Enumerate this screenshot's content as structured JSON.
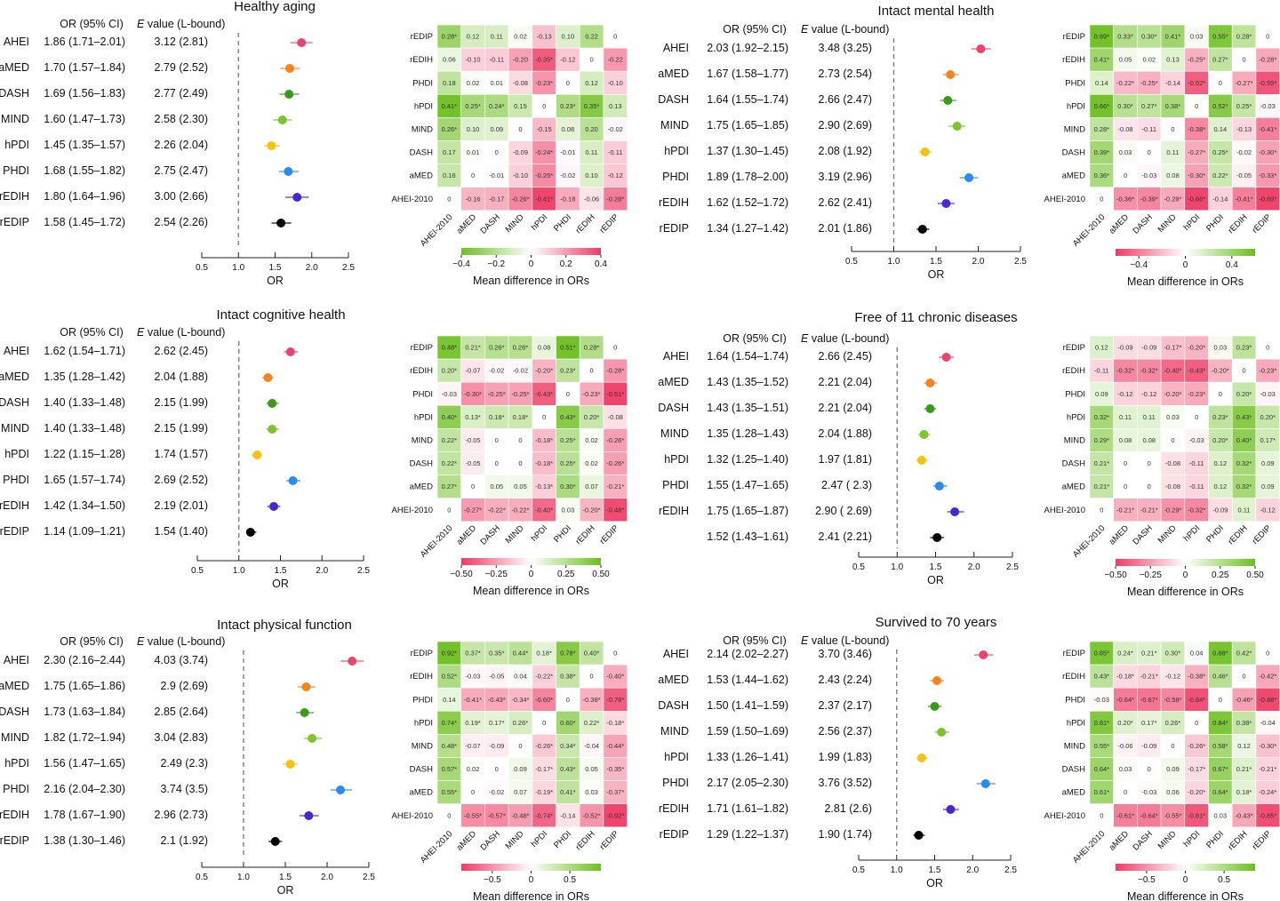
{
  "figure": {
    "or_header": "OR (95% CI)",
    "e_header_italic": "E",
    "e_header_rest": " value (L-bound)",
    "forest_axis_label": "OR",
    "forest_ticks": [
      "0.5",
      "1.0",
      "1.5",
      "2.0",
      "2.5"
    ],
    "heatmap_axis_labels": [
      "AHEI-2010",
      "aMED",
      "DASH",
      "MIND",
      "hPDI",
      "PHDI",
      "rEDIH",
      "rEDIP"
    ],
    "heatmap_row_labels": [
      "rEDIP",
      "rEDIH",
      "PHDI",
      "hPDI",
      "MIND",
      "DASH",
      "aMED",
      "AHEI-2010"
    ],
    "colorbar_label": "Mean difference in ORs",
    "colors": {
      "AHEI": "#f0436b",
      "aMED": "#f5841f",
      "DASH": "#3a9a1a",
      "MIND": "#7cc52c",
      "hPDI": "#f7c20e",
      "PHDI": "#2b8cf0",
      "rEDIH": "#4b24d6",
      "rEDIP": "#000000",
      "positive": "#6cbf1e",
      "negative": "#f03a64"
    }
  },
  "chart_data": [
    {
      "type": "forest+heatmap",
      "title": "Healthy aging",
      "xlim": [
        0.5,
        2.5
      ],
      "reference_line": 1.0,
      "rows": [
        {
          "label": "AHEI",
          "or": "1.86 (1.71–2.01)",
          "e": "3.12 (2.81)",
          "color": "AHEI"
        },
        {
          "label": "aMED",
          "or": "1.70 (1.57–1.84)",
          "e": "2.79 (2.52)",
          "color": "aMED"
        },
        {
          "label": "DASH",
          "or": "1.69 (1.56–1.83)",
          "e": "2.77 (2.49)",
          "color": "DASH"
        },
        {
          "label": "MIND",
          "or": "1.60 (1.47–1.73)",
          "e": "2.58 (2.30)",
          "color": "MIND"
        },
        {
          "label": "hPDI",
          "or": "1.45 (1.35–1.57)",
          "e": "2.26 (2.04)",
          "color": "hPDI"
        },
        {
          "label": "PHDI",
          "or": "1.68 (1.55–1.82)",
          "e": "2.75 (2.47)",
          "color": "PHDI"
        },
        {
          "label": "rEDIH",
          "or": "1.80 (1.64–1.96)",
          "e": "3.00 (2.66)",
          "color": "rEDIH"
        },
        {
          "label": "rEDIP",
          "or": "1.58 (1.45–1.72)",
          "e": "2.54 (2.26)",
          "color": "rEDIP"
        }
      ],
      "heatmap": [
        [
          "0.28*",
          "0.12",
          "0.11",
          "0.02",
          "-0.13",
          "0.10",
          "0.22",
          "0"
        ],
        [
          "0.06",
          "-0.10",
          "-0.11",
          "-0.20",
          "-0.35*",
          "-0.12",
          "0",
          "-0.22"
        ],
        [
          "0.18",
          "0.02",
          "0.01",
          "-0.08",
          "-0.23*",
          "0",
          "0.12",
          "-0.10"
        ],
        [
          "0.41*",
          "0.25*",
          "0.24*",
          "0.15",
          "0",
          "0.23*",
          "0.35*",
          "0.13"
        ],
        [
          "0.26*",
          "0.10",
          "0.09",
          "0",
          "-0.15",
          "0.08",
          "0.20",
          "-0.02"
        ],
        [
          "0.17",
          "0.01",
          "0",
          "-0.09",
          "-0.24*",
          "-0.01",
          "0.11",
          "-0.11"
        ],
        [
          "0.16",
          "0",
          "-0.01",
          "-0.10",
          "-0.25*",
          "-0.02",
          "0.10",
          "-0.12"
        ],
        [
          "0",
          "-0.16",
          "-0.17",
          "-0.26*",
          "-0.41*",
          "-0.18",
          "-0.06",
          "-0.28*"
        ]
      ],
      "colorbar": {
        "range": [
          -0.4,
          0.4
        ],
        "ticks": [
          "−0.4",
          "−0.2",
          "0",
          "0.2",
          "0.4"
        ],
        "left_color": "positive",
        "right_color": "negative"
      }
    },
    {
      "type": "forest+heatmap",
      "title": "Intact mental health",
      "xlim": [
        0.5,
        2.5
      ],
      "reference_line": 1.0,
      "rows": [
        {
          "label": "AHEI",
          "or": "2.03 (1.92–2.15)",
          "e": "3.48 (3.25)",
          "color": "AHEI"
        },
        {
          "label": "aMED",
          "or": "1.67 (1.58–1.77)",
          "e": "2.73 (2.54)",
          "color": "aMED"
        },
        {
          "label": "DASH",
          "or": "1.64 (1.55–1.74)",
          "e": "2.66 (2.47)",
          "color": "DASH"
        },
        {
          "label": "MIND",
          "or": "1.75 (1.65–1.85)",
          "e": "2.90 (2.69)",
          "color": "MIND"
        },
        {
          "label": "hPDI",
          "or": "1.37 (1.30–1.45)",
          "e": "2.08 (1.92)",
          "color": "hPDI"
        },
        {
          "label": "PHDI",
          "or": "1.89 (1.78–2.00)",
          "e": "3.19 (2.96)",
          "color": "PHDI"
        },
        {
          "label": "rEDIH",
          "or": "1.62 (1.52–1.72)",
          "e": "2.62 (2.41)",
          "color": "rEDIH"
        },
        {
          "label": "rEDIP",
          "or": "1.34 (1.27–1.42)",
          "e": "2.01 (1.86)",
          "color": "rEDIP"
        }
      ],
      "heatmap": [
        [
          "0.69*",
          "0.33*",
          "0.30*",
          "0.41*",
          "0.03",
          "0.55*",
          "0.28*",
          "0"
        ],
        [
          "0.41*",
          "0.05",
          "0.02",
          "0.13",
          "-0.25*",
          "0.27*",
          "0",
          "-0.28*"
        ],
        [
          "0.14",
          "-0.22*",
          "-0.25*",
          "-0.14",
          "-0.52*",
          "0",
          "-0.27*",
          "-0.55*"
        ],
        [
          "0.66*",
          "0.30*",
          "0.27*",
          "0.38*",
          "0",
          "0.52*",
          "0.25*",
          "-0.03"
        ],
        [
          "0.28*",
          "-0.08",
          "-0.11",
          "0",
          "-0.38*",
          "0.14",
          "-0.13",
          "-0.41*"
        ],
        [
          "0.39*",
          "0.03",
          "0",
          "0.11",
          "-0.27*",
          "0.25*",
          "-0.02",
          "-0.30*"
        ],
        [
          "0.36*",
          "0",
          "-0.03",
          "0.08",
          "-0.30*",
          "0.22*",
          "-0.05",
          "-0.33*"
        ],
        [
          "0",
          "-0.36*",
          "-0.39*",
          "-0.28*",
          "-0.66*",
          "-0.14",
          "-0.41*",
          "-0.69*"
        ]
      ],
      "colorbar": {
        "range": [
          -0.6,
          0.6
        ],
        "ticks": [
          "−0.4",
          "0",
          "0.4"
        ],
        "left_color": "negative",
        "right_color": "positive"
      }
    },
    {
      "type": "forest+heatmap",
      "title": "Intact cognitive health",
      "xlim": [
        0.5,
        2.5
      ],
      "reference_line": 1.0,
      "rows": [
        {
          "label": "AHEI",
          "or": "1.62 (1.54–1.71)",
          "e": "2.62 (2.45)",
          "color": "AHEI"
        },
        {
          "label": "aMED",
          "or": "1.35 (1.28–1.42)",
          "e": "2.04 (1.88)",
          "color": "aMED"
        },
        {
          "label": "DASH",
          "or": "1.40 (1.33–1.48)",
          "e": "2.15 (1.99)",
          "color": "DASH"
        },
        {
          "label": "MIND",
          "or": "1.40 (1.33–1.48)",
          "e": "2.15 (1.99)",
          "color": "MIND"
        },
        {
          "label": "hPDI",
          "or": "1.22 (1.15–1.28)",
          "e": "1.74 (1.57)",
          "color": "hPDI"
        },
        {
          "label": "PHDI",
          "or": "1.65 (1.57–1.74)",
          "e": "2.69 (2.52)",
          "color": "PHDI"
        },
        {
          "label": "rEDIH",
          "or": "1.42 (1.34–1.50)",
          "e": "2.19 (2.01)",
          "color": "rEDIH"
        },
        {
          "label": "rEDIP",
          "or": "1.14 (1.09–1.21)",
          "e": "1.54 (1.40)",
          "color": "rEDIP"
        }
      ],
      "heatmap": [
        [
          "0.48*",
          "0.21*",
          "0.26*",
          "0.26*",
          "0.08",
          "0.51*",
          "0.28*",
          "0"
        ],
        [
          "0.20*",
          "-0.07",
          "-0.02",
          "-0.02",
          "-0.20*",
          "0.23*",
          "0",
          "-0.28*"
        ],
        [
          "-0.03",
          "-0.30*",
          "-0.25*",
          "-0.25*",
          "-0.43*",
          "0",
          "-0.23*",
          "-0.51*"
        ],
        [
          "0.40*",
          "0.13*",
          "0.18*",
          "0.18*",
          "0",
          "0.43*",
          "0.20*",
          "-0.08"
        ],
        [
          "0.22*",
          "-0.05",
          "0",
          "0",
          "-0.18*",
          "0.25*",
          "0.02",
          "-0.26*"
        ],
        [
          "0.22*",
          "-0.05",
          "0",
          "0",
          "-0.18*",
          "0.25*",
          "0.02",
          "-0.26*"
        ],
        [
          "0.27*",
          "0",
          "0.05",
          "0.05",
          "-0.13*",
          "0.30*",
          "0.07",
          "-0.21*"
        ],
        [
          "0",
          "-0.27*",
          "-0.22*",
          "-0.22*",
          "-0.40*",
          "0.03",
          "-0.20*",
          "-0.48*"
        ]
      ],
      "colorbar": {
        "range": [
          -0.5,
          0.5
        ],
        "ticks": [
          "−0.50",
          "−0.25",
          "0",
          "0.25",
          "0.50"
        ],
        "left_color": "negative",
        "right_color": "positive"
      }
    },
    {
      "type": "forest+heatmap",
      "title": "Free of 11 chronic diseases",
      "xlim": [
        0.5,
        2.5
      ],
      "reference_line": 1.0,
      "rows": [
        {
          "label": "AHEI",
          "or": "1.64 (1.54–1.74)",
          "e": "2.66 (2.45)",
          "color": "AHEI"
        },
        {
          "label": "aMED",
          "or": "1.43 (1.35–1.52)",
          "e": "2.21 (2.04)",
          "color": "aMED"
        },
        {
          "label": "DASH",
          "or": "1.43 (1.35–1.51)",
          "e": "2.21 (2.04)",
          "color": "DASH"
        },
        {
          "label": "MIND",
          "or": "1.35 (1.28–1.43)",
          "e": "2.04 (1.88)",
          "color": "MIND"
        },
        {
          "label": "hPDI",
          "or": "1.32 (1.25–1.40)",
          "e": "1.97 (1.81)",
          "color": "hPDI"
        },
        {
          "label": "PHDI",
          "or": "1.55 (1.47–1.65)",
          "e": "2.47 ( 2.3)",
          "color": "PHDI"
        },
        {
          "label": "rEDIH",
          "or": "1.75 (1.65–1.87)",
          "e": "2.90 ( 2.69)",
          "color": "rEDIH"
        },
        {
          "label": "",
          "or": "1.52 (1.43–1.61)",
          "e": "2.41 (2.21)",
          "color": "rEDIP"
        }
      ],
      "heatmap": [
        [
          "0.12",
          "-0.09",
          "-0.09",
          "-0.17*",
          "-0.20*",
          "0.03",
          "0.23*",
          "0"
        ],
        [
          "-0.11",
          "-0.32*",
          "-0.32*",
          "-0.40*",
          "-0.43*",
          "-0.20*",
          "0",
          "-0.23*"
        ],
        [
          "0.09",
          "-0.12",
          "-0.12",
          "-0.20*",
          "-0.23*",
          "0",
          "0.20*",
          "-0.03"
        ],
        [
          "0.32*",
          "0.11",
          "0.11",
          "0.03",
          "0",
          "0.23*",
          "0.43*",
          "0.20*"
        ],
        [
          "0.29*",
          "0.08",
          "0.08",
          "0",
          "-0.03",
          "0.20*",
          "0.40*",
          "0.17*"
        ],
        [
          "0.21*",
          "0",
          "0",
          "-0.08",
          "-0.11",
          "0.12",
          "0.32*",
          "0.09"
        ],
        [
          "0.21*",
          "0",
          "0",
          "-0.08",
          "-0.11",
          "0.12",
          "0.32*",
          "0.09"
        ],
        [
          "0",
          "-0.21*",
          "-0.21*",
          "-0.29*",
          "-0.32*",
          "-0.09",
          "0.11",
          "-0.12"
        ]
      ],
      "colorbar": {
        "range": [
          -0.5,
          0.5
        ],
        "ticks": [
          "−0.50",
          "−0.25",
          "0",
          "0.25",
          "0.50"
        ],
        "left_color": "negative",
        "right_color": "positive"
      }
    },
    {
      "type": "forest+heatmap",
      "title": "Intact physical function",
      "xlim": [
        0.5,
        2.5
      ],
      "reference_line": 1.0,
      "rows": [
        {
          "label": "AHEI",
          "or": "2.30 (2.16–2.44)",
          "e": "4.03 (3.74)",
          "color": "AHEI"
        },
        {
          "label": "aMED",
          "or": "1.75 (1.65–1.86)",
          "e": "2.9 (2.69)",
          "color": "aMED"
        },
        {
          "label": "DASH",
          "or": "1.73 (1.63–1.84)",
          "e": "2.85 (2.64)",
          "color": "DASH"
        },
        {
          "label": "MIND",
          "or": "1.82 (1.72–1.94)",
          "e": "3.04 (2.83)",
          "color": "MIND"
        },
        {
          "label": "hPDI",
          "or": "1.56 (1.47–1.65)",
          "e": "2.49 (2.3)",
          "color": "hPDI"
        },
        {
          "label": "PHDI",
          "or": "2.16 (2.04–2.30)",
          "e": "3.74 (3.5)",
          "color": "PHDI"
        },
        {
          "label": "rEDIH",
          "or": "1.78 (1.67–1.90)",
          "e": "2.96 (2.73)",
          "color": "rEDIH"
        },
        {
          "label": "rEDIP",
          "or": "1.38 (1.30–1.46)",
          "e": "2.1 (1.92)",
          "color": "rEDIP"
        }
      ],
      "heatmap": [
        [
          "0.92*",
          "0.37*",
          "0.35*",
          "0.44*",
          "0.18*",
          "0.78*",
          "0.40*",
          "0"
        ],
        [
          "0.52*",
          "-0.03",
          "-0.05",
          "0.04",
          "-0.22*",
          "0.38*",
          "0",
          "-0.40*"
        ],
        [
          "0.14",
          "-0.41*",
          "-0.43*",
          "-0.34*",
          "-0.60*",
          "0",
          "-0.38*",
          "-0.78*"
        ],
        [
          "0.74*",
          "0.19*",
          "0.17*",
          "0.26*",
          "0",
          "0.60*",
          "0.22*",
          "-0.18*"
        ],
        [
          "0.48*",
          "-0.07",
          "-0.09",
          "0",
          "-0.26*",
          "0.34*",
          "-0.04",
          "-0.44*"
        ],
        [
          "0.57*",
          "0.02",
          "0",
          "0.09",
          "-0.17*",
          "0.43*",
          "0.05",
          "-0.35*"
        ],
        [
          "0.55*",
          "0",
          "-0.02",
          "0.07",
          "-0.19*",
          "0.41*",
          "0.03",
          "-0.37*"
        ],
        [
          "0",
          "-0.55*",
          "-0.57*",
          "-0.48*",
          "-0.74*",
          "-0.14",
          "-0.52*",
          "-0.92*"
        ]
      ],
      "colorbar": {
        "range": [
          -0.9,
          0.9
        ],
        "ticks": [
          "−0.5",
          "0",
          "0.5"
        ],
        "left_color": "negative",
        "right_color": "positive"
      }
    },
    {
      "type": "forest+heatmap",
      "title": "Survived to 70 years",
      "xlim": [
        0.5,
        2.5
      ],
      "reference_line": 1.0,
      "rows": [
        {
          "label": "AHEI",
          "or": "2.14 (2.02–2.27)",
          "e": "3.70 (3.46)",
          "color": "AHEI"
        },
        {
          "label": "aMED",
          "or": "1.53 (1.44–1.62)",
          "e": "2.43 (2.24)",
          "color": "aMED"
        },
        {
          "label": "DASH",
          "or": "1.50 (1.41–1.59)",
          "e": "2.37 (2.17)",
          "color": "DASH"
        },
        {
          "label": "MIND",
          "or": "1.59 (1.50–1.69)",
          "e": "2.56 (2.37)",
          "color": "MIND"
        },
        {
          "label": "hPDI",
          "or": "1.33 (1.26–1.41)",
          "e": "1.99 (1.83)",
          "color": "hPDI"
        },
        {
          "label": "PHDI",
          "or": "2.17 (2.05–2.30)",
          "e": "3.76 (3.52)",
          "color": "PHDI"
        },
        {
          "label": "rEDIH",
          "or": "1.71 (1.61–1.82)",
          "e": "2.81 (2.6)",
          "color": "rEDIH"
        },
        {
          "label": "rEDIP",
          "or": "1.29 (1.22–1.37)",
          "e": "1.90 (1.74)",
          "color": "rEDIP"
        }
      ],
      "heatmap": [
        [
          "0.85*",
          "0.24*",
          "0.21*",
          "0.30*",
          "0.04",
          "0.88*",
          "0.42*",
          "0"
        ],
        [
          "0.43*",
          "-0.18*",
          "-0.21*",
          "-0.12",
          "-0.38*",
          "0.46*",
          "0",
          "-0.42*"
        ],
        [
          "-0.03",
          "-0.64*",
          "-0.67*",
          "-0.58*",
          "-0.84*",
          "0",
          "-0.46*",
          "-0.88*"
        ],
        [
          "0.81*",
          "0.20*",
          "0.17*",
          "0.26*",
          "0",
          "0.84*",
          "0.38*",
          "-0.04"
        ],
        [
          "0.55*",
          "-0.06",
          "-0.09",
          "0",
          "-0.26*",
          "0.58*",
          "0.12",
          "-0.30*"
        ],
        [
          "0.64*",
          "0.03",
          "0",
          "0.09",
          "-0.17*",
          "0.67*",
          "0.21*",
          "-0.21*"
        ],
        [
          "0.61*",
          "0",
          "-0.03",
          "0.06",
          "-0.20*",
          "0.64*",
          "0.18*",
          "-0.24*"
        ],
        [
          "0",
          "-0.61*",
          "-0.64*",
          "-0.55*",
          "-0.81*",
          "0.03",
          "-0.43*",
          "-0.85*"
        ]
      ],
      "colorbar": {
        "range": [
          -0.9,
          0.9
        ],
        "ticks": [
          "−0.5",
          "0",
          "0.5"
        ],
        "left_color": "negative",
        "right_color": "positive"
      }
    }
  ]
}
